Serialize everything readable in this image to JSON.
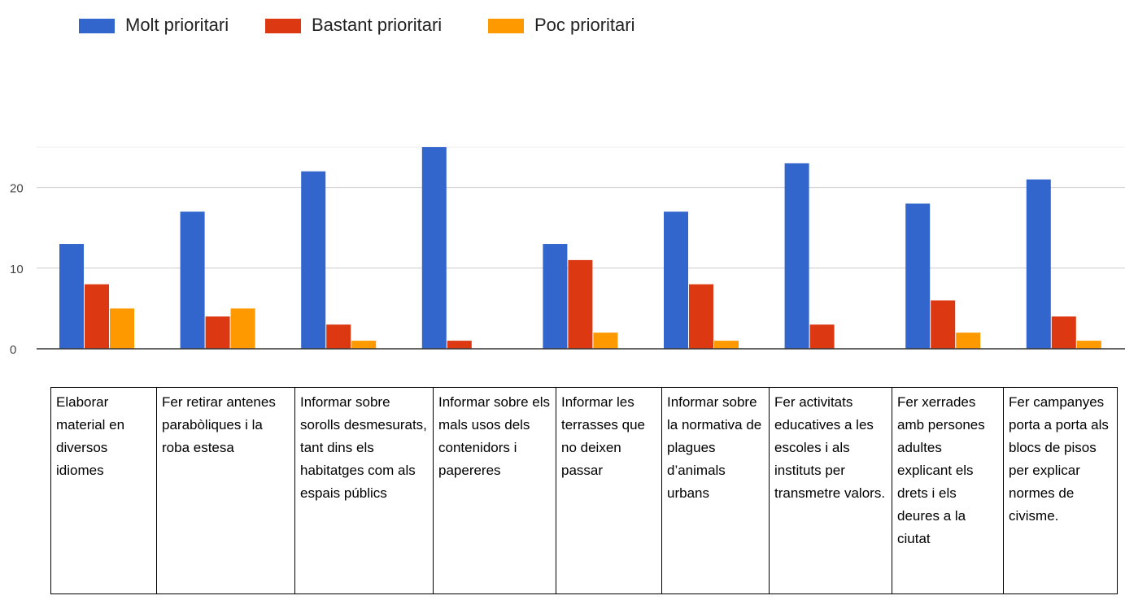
{
  "chart_data": {
    "type": "bar",
    "categories": [
      "Elaborar material en diversos idiomes",
      "Fer retirar antenes parabòliques i la roba estesa",
      "Informar sobre sorolls desmesurats, tant dins els habitatges com als espais públics",
      "Informar sobre els mals usos dels contenidors i papereres",
      "Informar les terrasses que no deixen passar",
      "Informar sobre la normativa de plagues d’animals urbans",
      "Fer activitats educatives a les escoles i als instituts per transmetre valors.",
      "Fer xerrades amb persones adultes explicant els drets i els deures a la ciutat",
      "Fer campanyes porta a porta als blocs de pisos per explicar normes de civisme."
    ],
    "series": [
      {
        "name": "Molt prioritari",
        "color": "#3366cc",
        "values": [
          13,
          17,
          22,
          25,
          13,
          17,
          23,
          18,
          21
        ]
      },
      {
        "name": "Bastant prioritari",
        "color": "#dc3912",
        "values": [
          8,
          4,
          3,
          1,
          11,
          8,
          3,
          6,
          4
        ]
      },
      {
        "name": "Poc prioritari",
        "color": "#ff9900",
        "values": [
          5,
          5,
          1,
          0,
          2,
          1,
          0,
          2,
          1
        ]
      }
    ],
    "y_ticks": [
      "0",
      "10",
      "20"
    ],
    "ylim": [
      0,
      25
    ],
    "grid": true,
    "legend_position": "top-left"
  }
}
